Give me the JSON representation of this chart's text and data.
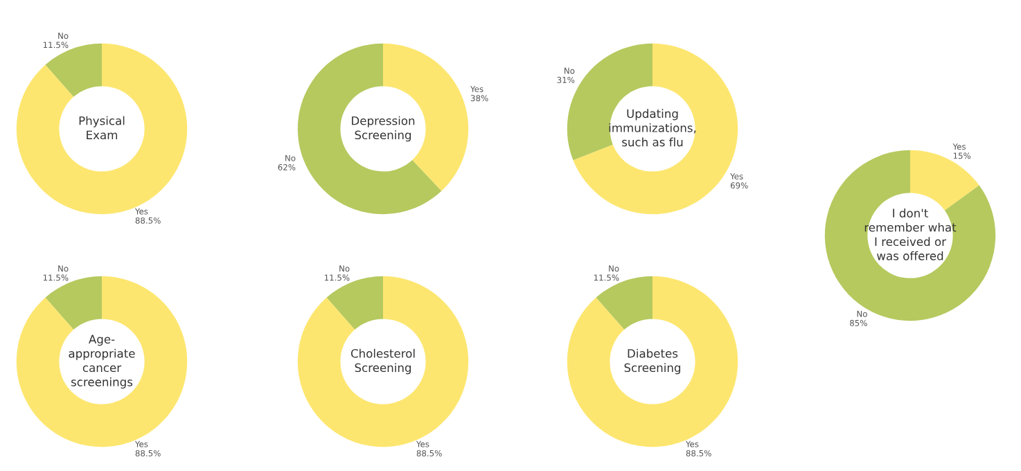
{
  "chart_data": [
    {
      "type": "donut",
      "title": "Physical\nExam",
      "categories": [
        "Yes",
        "No"
      ],
      "values": [
        88.5,
        11.5
      ],
      "value_labels": [
        "88.5%",
        "11.5%"
      ],
      "colors": [
        "#fde66f",
        "#b5c95e"
      ],
      "legend": false
    },
    {
      "type": "donut",
      "title": "Depression\nScreening",
      "categories": [
        "Yes",
        "No"
      ],
      "values": [
        38,
        62
      ],
      "value_labels": [
        "38%",
        "62%"
      ],
      "colors": [
        "#fde66f",
        "#b5c95e"
      ],
      "legend": false
    },
    {
      "type": "donut",
      "title": "Updating\nimmunizations,\nsuch as flu",
      "categories": [
        "Yes",
        "No"
      ],
      "values": [
        69,
        31
      ],
      "value_labels": [
        "69%",
        "31%"
      ],
      "colors": [
        "#fde66f",
        "#b5c95e"
      ],
      "legend": false
    },
    {
      "type": "donut",
      "title": "I don't\nremember what\nI received or\nwas offered",
      "categories": [
        "Yes",
        "No"
      ],
      "values": [
        15,
        85
      ],
      "value_labels": [
        "15%",
        "85%"
      ],
      "colors": [
        "#fde66f",
        "#b5c95e"
      ],
      "legend": false
    },
    {
      "type": "donut",
      "title": "Age-\nappropriate\ncancer\nscreenings",
      "categories": [
        "Yes",
        "No"
      ],
      "values": [
        88.5,
        11.5
      ],
      "value_labels": [
        "88.5%",
        "11.5%"
      ],
      "colors": [
        "#fde66f",
        "#b5c95e"
      ],
      "legend": false
    },
    {
      "type": "donut",
      "title": "Cholesterol\nScreening",
      "categories": [
        "Yes",
        "No"
      ],
      "values": [
        88.5,
        11.5
      ],
      "value_labels": [
        "88.5%",
        "11.5%"
      ],
      "colors": [
        "#fde66f",
        "#b5c95e"
      ],
      "legend": false
    },
    {
      "type": "donut",
      "title": "Diabetes\nScreening",
      "categories": [
        "Yes",
        "No"
      ],
      "values": [
        88.5,
        11.5
      ],
      "value_labels": [
        "88.5%",
        "11.5%"
      ],
      "colors": [
        "#fde66f",
        "#b5c95e"
      ],
      "legend": false
    }
  ]
}
